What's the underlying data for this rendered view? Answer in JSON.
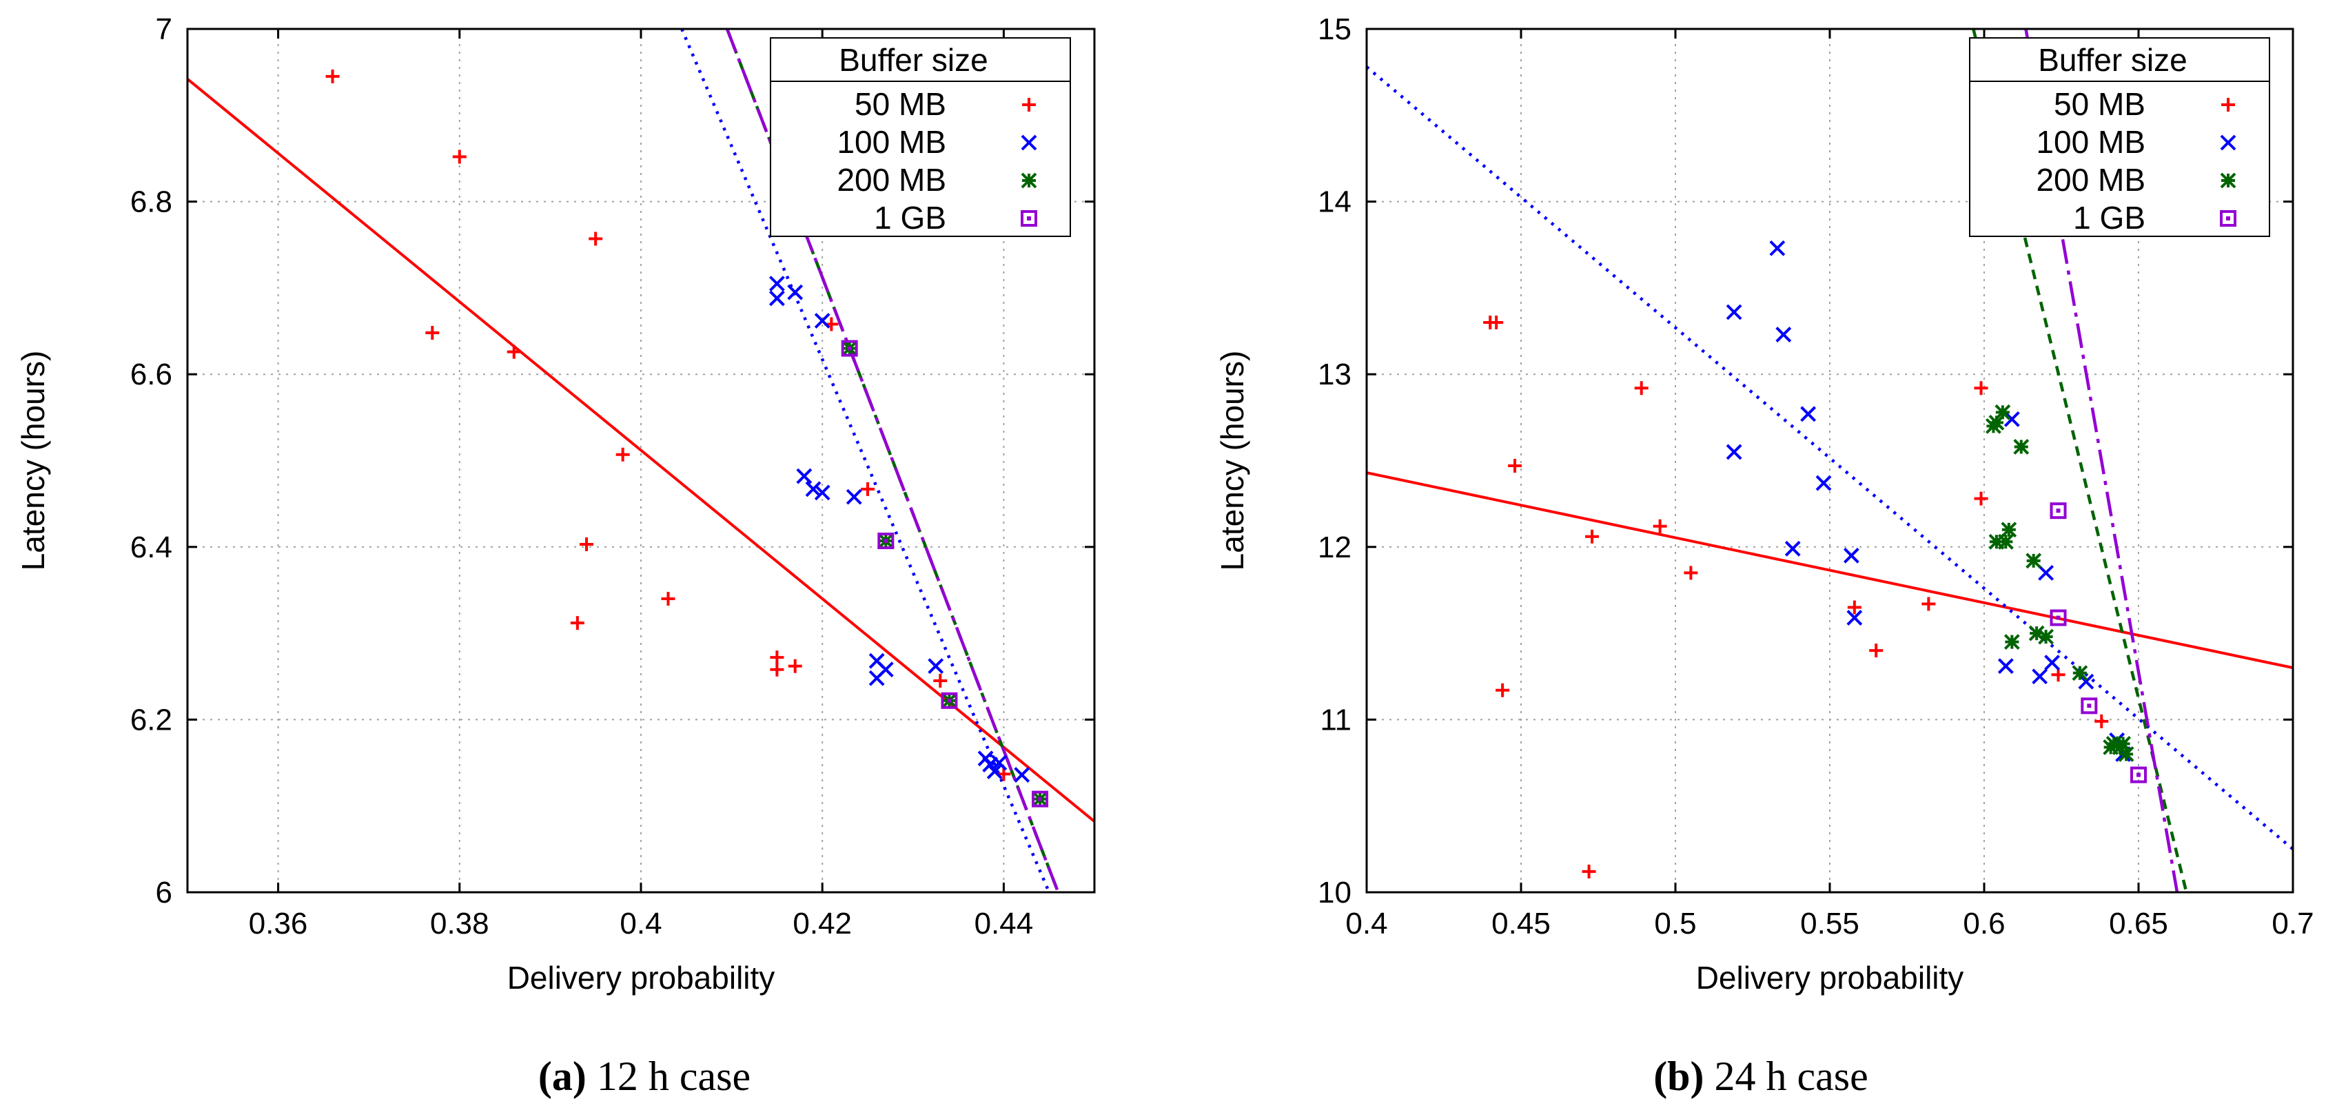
{
  "figure": {
    "captions": [
      {
        "tag": "(a)",
        "text": "12 h case"
      },
      {
        "tag": "(b)",
        "text": "24 h case"
      }
    ]
  },
  "chart_data": [
    {
      "type": "scatter",
      "xlabel": "Delivery probability",
      "ylabel": "Latency (hours)",
      "xlim": [
        0.35,
        0.45
      ],
      "ylim": [
        6,
        7
      ],
      "xticks": [
        0.36,
        0.38,
        0.4,
        0.42,
        0.44
      ],
      "xtick_labels": [
        "0.36",
        "0.38",
        "0.4",
        "0.42",
        "0.44"
      ],
      "yticks": [
        6,
        6.2,
        6.4,
        6.6,
        6.8,
        7
      ],
      "ytick_labels": [
        "6",
        "6.2",
        "6.4",
        "6.6",
        "6.8",
        "7"
      ],
      "grid": true,
      "legend": {
        "title": "Buffer size",
        "placement": "top-right"
      },
      "series": [
        {
          "name": "50 MB",
          "color": "#ff0000",
          "marker": "plus",
          "points": [
            [
              0.366,
              6.945
            ],
            [
              0.377,
              6.648
            ],
            [
              0.38,
              6.852
            ],
            [
              0.386,
              6.626
            ],
            [
              0.393,
              6.312
            ],
            [
              0.394,
              6.403
            ],
            [
              0.395,
              6.757
            ],
            [
              0.398,
              6.507
            ],
            [
              0.403,
              6.34
            ],
            [
              0.415,
              6.272
            ],
            [
              0.415,
              6.258
            ],
            [
              0.417,
              6.262
            ],
            [
              0.421,
              6.658
            ],
            [
              0.425,
              6.467
            ],
            [
              0.433,
              6.245
            ],
            [
              0.44,
              6.137
            ]
          ],
          "fit": [
            [
              0.35,
              6.942
            ],
            [
              0.45,
              6.082
            ]
          ],
          "fit_style": "solid"
        },
        {
          "name": "100 MB",
          "color": "#0000ff",
          "marker": "cross",
          "points": [
            [
              0.415,
              6.705
            ],
            [
              0.415,
              6.688
            ],
            [
              0.417,
              6.695
            ],
            [
              0.418,
              6.482
            ],
            [
              0.419,
              6.467
            ],
            [
              0.42,
              6.662
            ],
            [
              0.42,
              6.463
            ],
            [
              0.4235,
              6.458
            ],
            [
              0.426,
              6.268
            ],
            [
              0.426,
              6.248
            ],
            [
              0.427,
              6.258
            ],
            [
              0.4325,
              6.262
            ],
            [
              0.438,
              6.155
            ],
            [
              0.4385,
              6.148
            ],
            [
              0.439,
              6.14
            ],
            [
              0.4395,
              6.15
            ],
            [
              0.442,
              6.136
            ]
          ],
          "fit": [
            [
              0.4045,
              7.0
            ],
            [
              0.445,
              6.0
            ]
          ],
          "fit_style": "dotted"
        },
        {
          "name": "200 MB",
          "color": "#006400",
          "marker": "star",
          "points": [
            [
              0.423,
              6.63
            ],
            [
              0.427,
              6.407
            ],
            [
              0.434,
              6.222
            ],
            [
              0.444,
              6.108
            ]
          ],
          "fit": [
            [
              0.4095,
              7.0
            ],
            [
              0.446,
              6.0
            ]
          ],
          "fit_style": "dashed"
        },
        {
          "name": "1 GB",
          "color": "#9400d3",
          "marker": "square",
          "points": [
            [
              0.423,
              6.63
            ],
            [
              0.427,
              6.407
            ],
            [
              0.434,
              6.222
            ],
            [
              0.444,
              6.108
            ]
          ],
          "fit": [
            [
              0.4095,
              7.0
            ],
            [
              0.446,
              6.0
            ]
          ],
          "fit_style": "dashdot"
        }
      ]
    },
    {
      "type": "scatter",
      "xlabel": "Delivery probability",
      "ylabel": "Latency (hours)",
      "xlim": [
        0.4,
        0.7
      ],
      "ylim": [
        10,
        15
      ],
      "xticks": [
        0.4,
        0.45,
        0.5,
        0.55,
        0.6,
        0.65,
        0.7
      ],
      "xtick_labels": [
        "0.4",
        "0.45",
        "0.5",
        "0.55",
        "0.6",
        "0.65",
        "0.7"
      ],
      "yticks": [
        10,
        11,
        12,
        13,
        14,
        15
      ],
      "ytick_labels": [
        "10",
        "11",
        "12",
        "13",
        "14",
        "15"
      ],
      "grid": true,
      "legend": {
        "title": "Buffer size",
        "placement": "top-right"
      },
      "series": [
        {
          "name": "50 MB",
          "color": "#ff0000",
          "marker": "plus",
          "points": [
            [
              0.44,
              13.3
            ],
            [
              0.442,
              13.3
            ],
            [
              0.444,
              11.17
            ],
            [
              0.448,
              12.47
            ],
            [
              0.472,
              10.12
            ],
            [
              0.473,
              12.06
            ],
            [
              0.489,
              12.92
            ],
            [
              0.495,
              12.12
            ],
            [
              0.505,
              11.85
            ],
            [
              0.558,
              11.65
            ],
            [
              0.565,
              11.4
            ],
            [
              0.582,
              11.67
            ],
            [
              0.599,
              12.92
            ],
            [
              0.599,
              12.28
            ],
            [
              0.624,
              11.26
            ],
            [
              0.638,
              10.99
            ]
          ],
          "fit": [
            [
              0.4,
              12.43
            ],
            [
              0.7,
              11.3
            ]
          ],
          "fit_style": "solid"
        },
        {
          "name": "100 MB",
          "color": "#0000ff",
          "marker": "cross",
          "points": [
            [
              0.519,
              13.36
            ],
            [
              0.519,
              12.55
            ],
            [
              0.533,
              13.73
            ],
            [
              0.535,
              13.23
            ],
            [
              0.538,
              11.99
            ],
            [
              0.543,
              12.77
            ],
            [
              0.548,
              12.37
            ],
            [
              0.557,
              11.95
            ],
            [
              0.558,
              11.59
            ],
            [
              0.607,
              11.31
            ],
            [
              0.609,
              12.74
            ],
            [
              0.618,
              11.25
            ],
            [
              0.62,
              11.85
            ],
            [
              0.622,
              11.33
            ],
            [
              0.633,
              11.22
            ],
            [
              0.643,
              10.88
            ],
            [
              0.645,
              10.8
            ]
          ],
          "fit": [
            [
              0.4,
              14.78
            ],
            [
              0.7,
              10.25
            ]
          ],
          "fit_style": "dotted"
        },
        {
          "name": "200 MB",
          "color": "#006400",
          "marker": "star",
          "points": [
            [
              0.603,
              12.7
            ],
            [
              0.604,
              12.72
            ],
            [
              0.606,
              12.78
            ],
            [
              0.604,
              12.03
            ],
            [
              0.607,
              12.03
            ],
            [
              0.608,
              12.1
            ],
            [
              0.609,
              11.45
            ],
            [
              0.612,
              12.58
            ],
            [
              0.616,
              11.92
            ],
            [
              0.617,
              11.5
            ],
            [
              0.62,
              11.48
            ],
            [
              0.631,
              11.27
            ],
            [
              0.641,
              10.84
            ],
            [
              0.642,
              10.86
            ],
            [
              0.644,
              10.84
            ],
            [
              0.645,
              10.86
            ],
            [
              0.646,
              10.8
            ]
          ],
          "fit": [
            [
              0.5965,
              15.0
            ],
            [
              0.6655,
              10.0
            ]
          ],
          "fit_style": "dashed"
        },
        {
          "name": "1 GB",
          "color": "#9400d3",
          "marker": "square",
          "points": [
            [
              0.624,
              12.21
            ],
            [
              0.624,
              11.59
            ],
            [
              0.634,
              11.08
            ],
            [
              0.65,
              10.68
            ]
          ],
          "fit": [
            [
              0.6135,
              15.0
            ],
            [
              0.6625,
              10.0
            ]
          ],
          "fit_style": "dashdot"
        }
      ]
    }
  ]
}
